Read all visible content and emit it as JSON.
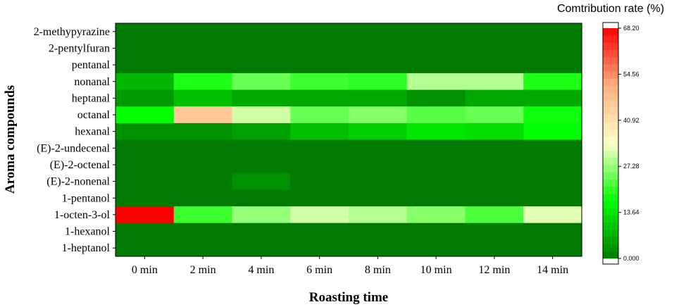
{
  "chart_data": {
    "type": "heatmap",
    "xlabel": "Roasting time",
    "ylabel": "Aroma compounds",
    "x_categories": [
      "0 min",
      "2 min",
      "4 min",
      "6 min",
      "8 min",
      "10 min",
      "12 min",
      "14 min"
    ],
    "y_categories": [
      "2-methypyrazine",
      "2-pentylfuran",
      "pentanal",
      "nonanal",
      "heptanal",
      "octanal",
      "hexanal",
      "(E)-2-undecenal",
      "(E)-2-octenal",
      "(E)-2-nonenal",
      "1-pentanol",
      "1-octen-3-ol",
      "1-hexanol",
      "1-heptanol"
    ],
    "values": [
      [
        0,
        0,
        0,
        0,
        0,
        0,
        0,
        0
      ],
      [
        0,
        0,
        0,
        0,
        0,
        0,
        0,
        0
      ],
      [
        0,
        0,
        0,
        0,
        0,
        0,
        0,
        0
      ],
      [
        8,
        19,
        24,
        21,
        20,
        29,
        29,
        19
      ],
      [
        4,
        9,
        6,
        6,
        6,
        3,
        6,
        6
      ],
      [
        17,
        46,
        31,
        24,
        26,
        23,
        24,
        18
      ],
      [
        3,
        3,
        5,
        9,
        11,
        14,
        13,
        17
      ],
      [
        0,
        0,
        0,
        0,
        0,
        0,
        0,
        0
      ],
      [
        0,
        0,
        0,
        0,
        0,
        0,
        0,
        0
      ],
      [
        0,
        0,
        3,
        0,
        0,
        0,
        0,
        0
      ],
      [
        0,
        0,
        0,
        0,
        0,
        0,
        0,
        0
      ],
      [
        68.2,
        21,
        27,
        31,
        29,
        26,
        22,
        32
      ],
      [
        0,
        0,
        0,
        0,
        0,
        0,
        0,
        0
      ],
      [
        0,
        0,
        0,
        0,
        0,
        0,
        0,
        0
      ]
    ],
    "colorbar": {
      "title": "Comtribution rate (%)",
      "min": 0,
      "max": 68.2,
      "ticks": [
        "68.20",
        "54.56",
        "40.92",
        "27.28",
        "13.64",
        "0.000"
      ],
      "colors": [
        "#007a00",
        "#00ff00",
        "#ffffcc",
        "#ffb080",
        "#ff0000"
      ]
    }
  }
}
